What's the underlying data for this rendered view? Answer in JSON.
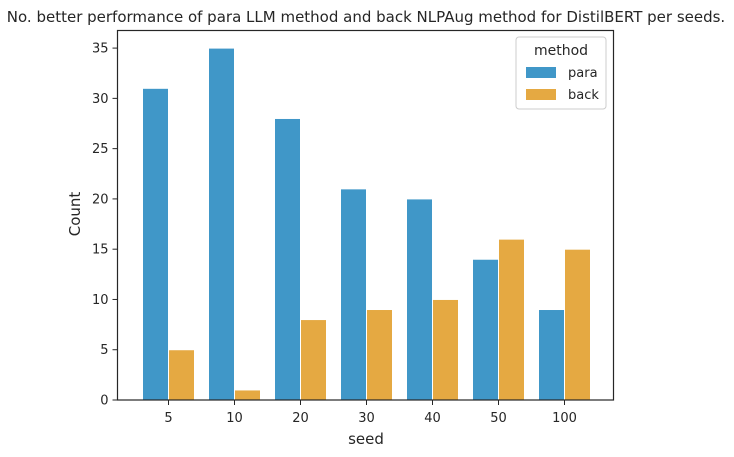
{
  "chart_data": {
    "type": "bar",
    "title": "No. better performance of para LLM method and back NLPAug method for DistilBERT per seeds.",
    "xlabel": "seed",
    "ylabel": "Count",
    "categories": [
      "5",
      "10",
      "20",
      "30",
      "40",
      "50",
      "100"
    ],
    "series": [
      {
        "name": "para",
        "values": [
          31,
          35,
          28,
          21,
          20,
          14,
          9
        ],
        "color": "#4097c8"
      },
      {
        "name": "back",
        "values": [
          5,
          1,
          8,
          9,
          10,
          16,
          15
        ],
        "color": "#e5a942"
      }
    ],
    "ylim": [
      0,
      36.75
    ],
    "yticks": [
      0,
      5,
      10,
      15,
      20,
      25,
      30,
      35
    ],
    "legend": {
      "title": "method",
      "placement": "top-right"
    },
    "grid": false
  }
}
